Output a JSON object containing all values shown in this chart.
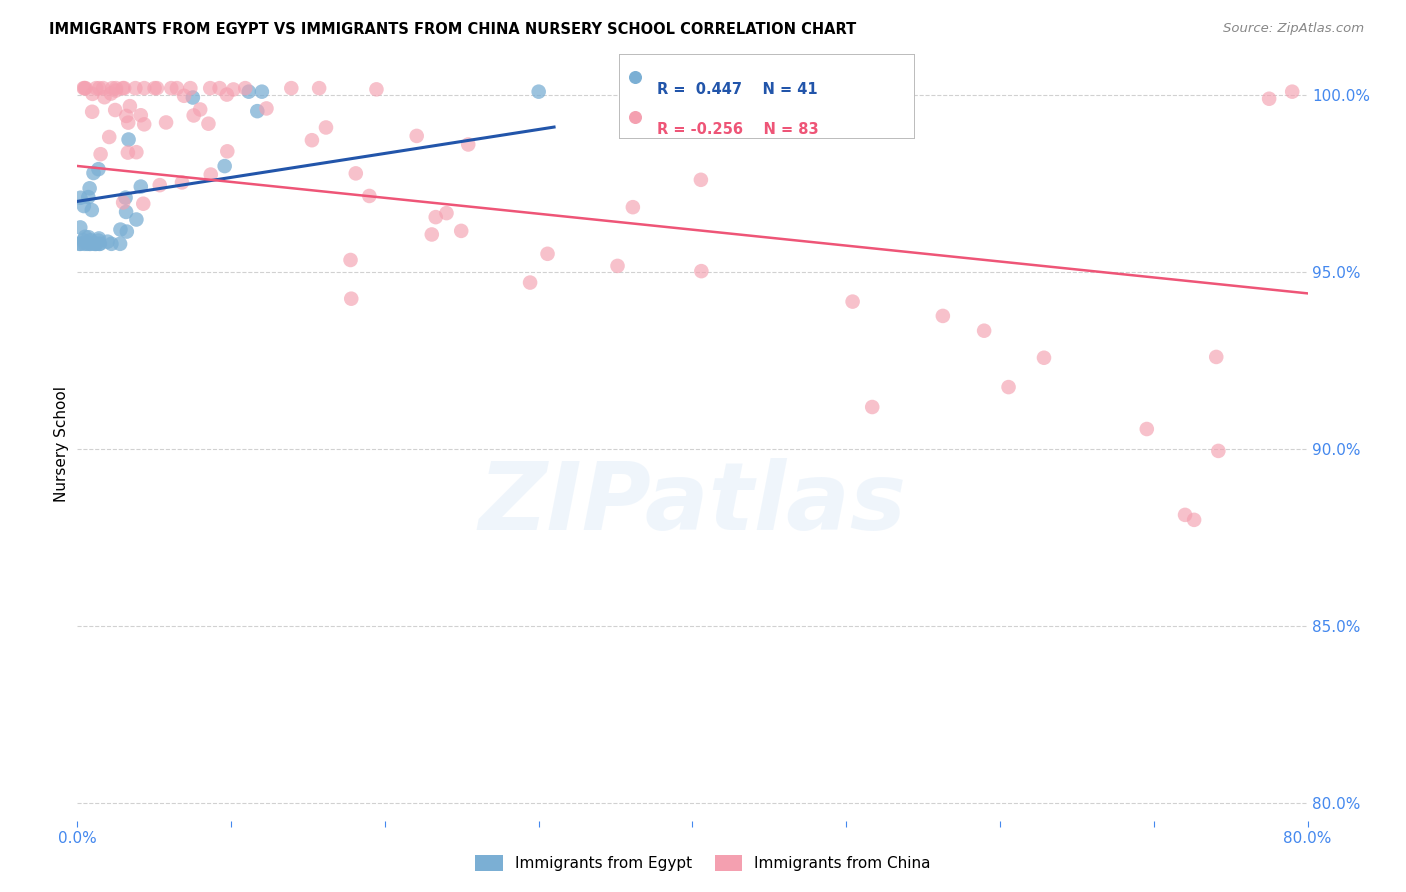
{
  "title": "IMMIGRANTS FROM EGYPT VS IMMIGRANTS FROM CHINA NURSERY SCHOOL CORRELATION CHART",
  "source": "Source: ZipAtlas.com",
  "ylabel": "Nursery School",
  "xlim": [
    0.0,
    0.8
  ],
  "ylim": [
    0.795,
    1.008
  ],
  "yticks": [
    0.8,
    0.85,
    0.9,
    0.95,
    1.0
  ],
  "ytick_labels": [
    "80.0%",
    "85.0%",
    "90.0%",
    "95.0%",
    "100.0%"
  ],
  "xtick_positions": [
    0.0,
    0.1,
    0.2,
    0.3,
    0.4,
    0.5,
    0.6,
    0.7,
    0.8
  ],
  "xtick_labels": [
    "0.0%",
    "",
    "",
    "",
    "",
    "",
    "",
    "",
    "80.0%"
  ],
  "egypt_R": 0.447,
  "egypt_N": 41,
  "china_R": -0.256,
  "china_N": 83,
  "egypt_color": "#7BAFD4",
  "china_color": "#F4A0B0",
  "egypt_line_color": "#2255AA",
  "china_line_color": "#EE5577",
  "axis_color": "#4488EE",
  "grid_color": "#CCCCCC",
  "background_color": "#FFFFFF",
  "egypt_line_x": [
    0.0,
    0.31
  ],
  "egypt_line_y": [
    0.97,
    0.991
  ],
  "china_line_x": [
    0.0,
    0.8
  ],
  "china_line_y": [
    0.98,
    0.944
  ],
  "watermark_text": "ZIPatlas",
  "watermark_color": "#AACCEE",
  "watermark_alpha": 0.18
}
